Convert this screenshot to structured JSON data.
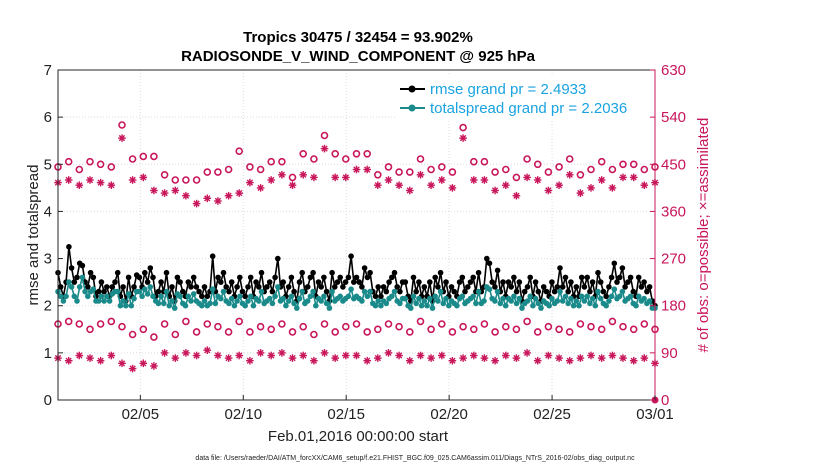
{
  "chart_data": {
    "type": "line",
    "title_line1": "Tropics 30475 / 32454 = 93.902%",
    "title_line2": "RADIOSONDE_V_WIND_COMPONENT @ 925 hPa",
    "xlabel": "Feb.01,2016 00:00:00 start",
    "ylabel_left": "rmse and totalspread",
    "ylabel_right": "# of obs: o=possible; ×=assimilated",
    "footer": "data file: /Users/raeder/DAI/ATM_forcXX/CAM6_setup/f.e21.FHIST_BGC.f09_025.CAM6assim.011/Diags_NTrS_2016-02/obs_diag_output.nc",
    "xlim": [
      1,
      30
    ],
    "ylim_left": [
      0,
      7
    ],
    "ylim_right": [
      0,
      630
    ],
    "x_ticks": [
      5,
      10,
      15,
      20,
      25,
      30
    ],
    "x_tick_labels": [
      "02/05",
      "02/10",
      "02/15",
      "02/20",
      "02/25",
      "03/01"
    ],
    "y_ticks_left": [
      "0",
      "1",
      "2",
      "3",
      "4",
      "5",
      "6",
      "7"
    ],
    "y_ticks_right": [
      "0",
      "90",
      "180",
      "270",
      "360",
      "450",
      "540",
      "630"
    ],
    "legend": [
      {
        "name": "rmse grand pr = 2.4933",
        "color": "#000000"
      },
      {
        "name": "totalspread grand pr = 2.2036",
        "color": "#1a8a8a"
      }
    ],
    "colors": {
      "rmse": "#000000",
      "spread": "#1a8a8a",
      "obs": "#c8165b"
    },
    "series": [
      {
        "name": "rmse",
        "axis": "left",
        "style": "line-dot",
        "color": "#000000",
        "values": [
          2.7,
          2.4,
          2.2,
          2.5,
          3.25,
          2.8,
          2.5,
          2.6,
          2.9,
          2.85,
          2.5,
          2.4,
          2.7,
          2.6,
          2.2,
          2.3,
          2.5,
          2.3,
          2.4,
          2.2,
          2.4,
          2.5,
          2.7,
          2.2,
          2.4,
          2.1,
          2.6,
          2.2,
          2.4,
          2.65,
          2.6,
          2.4,
          2.7,
          2.5,
          2.8,
          2.6,
          2.2,
          2.3,
          2.5,
          2.3,
          2.7,
          2.2,
          2.4,
          2.1,
          2.6,
          2.5,
          2.3,
          2.2,
          2.5,
          2.4,
          2.6,
          2.4,
          2.3,
          2.2,
          2.4,
          2.2,
          2.3,
          3.05,
          2.3,
          2.6,
          2.5,
          2.7,
          2.4,
          2.3,
          2.5,
          2.2,
          2.4,
          2.6,
          2.3,
          2.2,
          2.4,
          2.6,
          2.2,
          2.5,
          2.4,
          2.7,
          2.3,
          2.4,
          2.5,
          2.3,
          2.6,
          3.0,
          2.4,
          2.5,
          2.2,
          2.4,
          2.6,
          2.3,
          2.1,
          2.5,
          2.7,
          2.3,
          2.4,
          2.6,
          2.7,
          2.2,
          2.5,
          2.4,
          2.6,
          2.3,
          2.1,
          2.7,
          2.4,
          2.5,
          2.6,
          2.4,
          2.5,
          2.6,
          3.05,
          2.5,
          2.6,
          2.5,
          2.4,
          2.8,
          2.6,
          2.7,
          2.3,
          2.2,
          2.4,
          2.2,
          2.4,
          2.3,
          2.5,
          2.6,
          2.7,
          2.4,
          2.3,
          2.5,
          2.5,
          2.2,
          2.1,
          2.6,
          2.3,
          2.5,
          2.2,
          2.4,
          2.2,
          2.5,
          2.1,
          2.6,
          2.4,
          2.7,
          2.3,
          2.5,
          2.2,
          2.4,
          2.3,
          2.2,
          2.5,
          2.6,
          2.3,
          2.4,
          2.5,
          2.6,
          2.3,
          2.7,
          2.3,
          2.4,
          3.0,
          2.9,
          2.5,
          2.4,
          2.75,
          2.3,
          2.5,
          2.2,
          2.5,
          2.4,
          2.6,
          2.3,
          2.5,
          2.1,
          2.3,
          2.4,
          2.6,
          2.2,
          2.5,
          2.3,
          2.1,
          2.4,
          2.3,
          2.2,
          2.5,
          2.3,
          2.4,
          2.8,
          2.4,
          2.6,
          2.3,
          2.5,
          2.2,
          2.4,
          2.2,
          2.6,
          2.4,
          2.6,
          2.3,
          2.5,
          2.2,
          2.7,
          2.5,
          2.3,
          2.2,
          2.4,
          2.6,
          2.9,
          2.5,
          2.6,
          2.8,
          2.4,
          2.5,
          2.6,
          2.3,
          2.2,
          2.6,
          2.4,
          2.5,
          2.3,
          2.4,
          2.1,
          2.0
        ]
      },
      {
        "name": "totalspread",
        "axis": "left",
        "style": "line-dot",
        "color": "#1a8a8a",
        "values": [
          2.3,
          2.2,
          2.1,
          2.2,
          2.5,
          2.4,
          2.2,
          2.1,
          2.4,
          2.6,
          2.3,
          2.2,
          2.3,
          2.35,
          2.1,
          2.1,
          2.2,
          2.1,
          2.2,
          2.1,
          2.25,
          2.3,
          2.3,
          2.0,
          2.1,
          2.0,
          2.25,
          2.0,
          2.15,
          2.3,
          2.3,
          2.2,
          2.35,
          2.25,
          2.4,
          2.2,
          2.1,
          2.05,
          2.2,
          2.05,
          2.3,
          2.0,
          2.1,
          1.95,
          2.25,
          2.2,
          2.05,
          2.0,
          2.2,
          2.1,
          2.25,
          2.1,
          2.05,
          2.0,
          2.1,
          2.0,
          2.05,
          2.35,
          2.05,
          2.2,
          2.15,
          2.3,
          2.1,
          2.05,
          2.15,
          2.0,
          2.1,
          2.2,
          2.05,
          2.0,
          2.1,
          2.2,
          2.0,
          2.15,
          2.1,
          2.3,
          2.05,
          2.1,
          2.15,
          2.05,
          2.2,
          2.4,
          2.1,
          2.15,
          2.0,
          2.1,
          2.2,
          2.05,
          1.95,
          2.15,
          2.3,
          2.05,
          2.1,
          2.2,
          2.3,
          2.0,
          2.15,
          2.1,
          2.2,
          2.05,
          1.95,
          2.3,
          2.1,
          2.15,
          2.2,
          2.1,
          2.15,
          2.2,
          2.35,
          2.15,
          2.2,
          2.15,
          2.1,
          2.3,
          2.2,
          2.3,
          2.05,
          2.0,
          2.1,
          2.0,
          2.1,
          2.05,
          2.15,
          2.2,
          2.3,
          2.1,
          2.05,
          2.15,
          2.15,
          2.0,
          1.95,
          2.2,
          2.05,
          2.15,
          2.0,
          2.1,
          2.0,
          2.15,
          1.95,
          2.2,
          2.1,
          2.3,
          2.05,
          2.15,
          2.0,
          2.1,
          2.05,
          2.0,
          2.15,
          2.2,
          2.05,
          2.1,
          2.15,
          2.2,
          2.05,
          2.3,
          2.05,
          2.1,
          2.4,
          2.35,
          2.15,
          2.1,
          2.3,
          2.05,
          2.15,
          2.0,
          2.15,
          2.1,
          2.2,
          2.05,
          2.15,
          1.95,
          2.05,
          2.1,
          2.2,
          2.0,
          2.15,
          2.05,
          1.95,
          2.1,
          2.05,
          2.0,
          2.15,
          2.05,
          2.1,
          2.3,
          2.1,
          2.2,
          2.05,
          2.15,
          2.0,
          2.1,
          2.0,
          2.2,
          2.1,
          2.2,
          2.05,
          2.15,
          2.0,
          2.3,
          2.15,
          2.05,
          2.0,
          2.1,
          2.2,
          2.35,
          2.15,
          2.2,
          2.3,
          2.1,
          2.15,
          2.2,
          2.05,
          2.0,
          2.2,
          2.1,
          2.15,
          2.05,
          2.1,
          1.95,
          1.95
        ]
      },
      {
        "name": "obs possible",
        "axis": "right",
        "style": "circle",
        "color": "#c8165b",
        "values": [
          445,
          455,
          440,
          455,
          450,
          445,
          525,
          460,
          465,
          465,
          430,
          420,
          420,
          420,
          435,
          435,
          440,
          475,
          445,
          440,
          455,
          455,
          425,
          470,
          460,
          505,
          470,
          460,
          470,
          470,
          430,
          445,
          435,
          435,
          460,
          440,
          445,
          435,
          520,
          455,
          455,
          435,
          440,
          425,
          460,
          450,
          435,
          445,
          460,
          430,
          440,
          455,
          440,
          450,
          450,
          440,
          445
        ]
      },
      {
        "name": "obs assimilated",
        "axis": "right",
        "style": "asterisk",
        "color": "#c8165b",
        "values": [
          415,
          420,
          410,
          420,
          415,
          410,
          500,
          420,
          425,
          400,
          395,
          400,
          390,
          375,
          385,
          380,
          390,
          395,
          415,
          405,
          420,
          430,
          410,
          430,
          425,
          480,
          425,
          425,
          440,
          440,
          410,
          420,
          410,
          400,
          430,
          410,
          420,
          405,
          500,
          420,
          420,
          400,
          410,
          390,
          425,
          420,
          400,
          410,
          430,
          395,
          405,
          420,
          405,
          425,
          425,
          410,
          415
        ]
      },
      {
        "name": "obs possible (00Z)",
        "axis": "right",
        "style": "circle",
        "color": "#c8165b",
        "values": [
          145,
          150,
          145,
          135,
          145,
          150,
          140,
          125,
          135,
          120,
          145,
          125,
          150,
          130,
          145,
          140,
          130,
          150,
          130,
          140,
          135,
          145,
          130,
          140,
          125,
          145,
          130,
          140,
          145,
          130,
          135,
          145,
          140,
          130,
          150,
          135,
          145,
          130,
          140,
          135,
          145,
          130,
          140,
          135,
          150,
          130,
          140,
          135,
          130,
          145,
          140,
          135,
          150,
          140,
          135,
          145,
          135
        ]
      },
      {
        "name": "obs assimilated (00Z)",
        "axis": "right",
        "style": "asterisk",
        "color": "#c8165b",
        "values": [
          80,
          75,
          85,
          80,
          75,
          85,
          70,
          60,
          70,
          65,
          90,
          80,
          90,
          85,
          95,
          85,
          80,
          85,
          75,
          90,
          85,
          90,
          80,
          85,
          75,
          90,
          80,
          85,
          85,
          75,
          80,
          90,
          85,
          75,
          85,
          80,
          85,
          75,
          80,
          85,
          80,
          75,
          85,
          80,
          90,
          75,
          85,
          80,
          75,
          80,
          85,
          80,
          85,
          80,
          75,
          80,
          70
        ]
      }
    ]
  }
}
